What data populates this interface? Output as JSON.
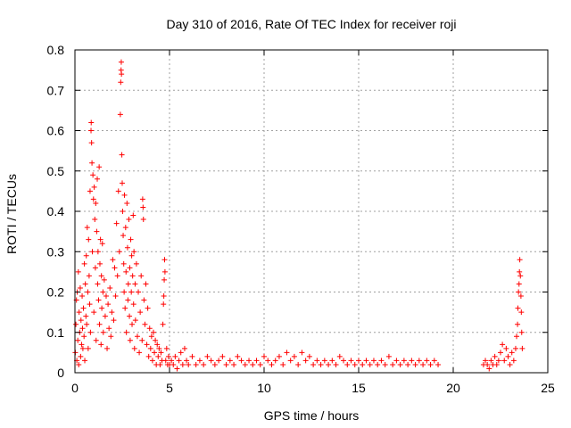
{
  "chart_data": {
    "type": "scatter",
    "title": "Day 310 of 2016, Rate Of TEC Index for receiver roji",
    "xlabel": "GPS time / hours",
    "ylabel": "ROTI / TECUs",
    "xlim": [
      0,
      25
    ],
    "ylim": [
      0,
      0.8
    ],
    "xticks": [
      0,
      5,
      10,
      15,
      20,
      25
    ],
    "xtick_labels": [
      "0",
      "5",
      "10",
      "15",
      "20",
      "25"
    ],
    "yticks": [
      0,
      0.1,
      0.2,
      0.3,
      0.4,
      0.5,
      0.6,
      0.7,
      0.8
    ],
    "ytick_labels": [
      "0",
      "0.1",
      "0.2",
      "0.3",
      "0.4",
      "0.5",
      "0.6",
      "0.7",
      "0.8"
    ],
    "grid": true,
    "marker": "plus",
    "color": "#ff0000",
    "series": [
      {
        "name": "ROTI",
        "points": [
          [
            0.02,
            0.05
          ],
          [
            0.05,
            0.12
          ],
          [
            0.08,
            0.18
          ],
          [
            0.1,
            0.03
          ],
          [
            0.12,
            0.2
          ],
          [
            0.15,
            0.08
          ],
          [
            0.18,
            0.25
          ],
          [
            0.2,
            0.02
          ],
          [
            0.22,
            0.15
          ],
          [
            0.25,
            0.1
          ],
          [
            0.28,
            0.21
          ],
          [
            0.3,
            0.04
          ],
          [
            0.32,
            0.13
          ],
          [
            0.35,
            0.07
          ],
          [
            0.38,
            0.19
          ],
          [
            0.4,
            0.11
          ],
          [
            0.42,
            0.06
          ],
          [
            0.45,
            0.16
          ],
          [
            0.48,
            0.09
          ],
          [
            0.5,
            0.27
          ],
          [
            0.52,
            0.03
          ],
          [
            0.55,
            0.22
          ],
          [
            0.58,
            0.14
          ],
          [
            0.6,
            0.29
          ],
          [
            0.62,
            0.12
          ],
          [
            0.65,
            0.36
          ],
          [
            0.68,
            0.2
          ],
          [
            0.7,
            0.06
          ],
          [
            0.72,
            0.33
          ],
          [
            0.75,
            0.24
          ],
          [
            0.78,
            0.17
          ],
          [
            0.8,
            0.45
          ],
          [
            0.82,
            0.1
          ],
          [
            0.85,
            0.6
          ],
          [
            0.86,
            0.62
          ],
          [
            0.88,
            0.57
          ],
          [
            0.9,
            0.52
          ],
          [
            0.92,
            0.3
          ],
          [
            0.95,
            0.49
          ],
          [
            0.98,
            0.43
          ],
          [
            1.0,
            0.15
          ],
          [
            1.02,
            0.46
          ],
          [
            1.05,
            0.38
          ],
          [
            1.08,
            0.26
          ],
          [
            1.1,
            0.42
          ],
          [
            1.12,
            0.08
          ],
          [
            1.15,
            0.35
          ],
          [
            1.18,
            0.48
          ],
          [
            1.2,
            0.22
          ],
          [
            1.22,
            0.3
          ],
          [
            1.25,
            0.18
          ],
          [
            1.28,
            0.51
          ],
          [
            1.3,
            0.12
          ],
          [
            1.32,
            0.27
          ],
          [
            1.35,
            0.33
          ],
          [
            1.38,
            0.07
          ],
          [
            1.4,
            0.24
          ],
          [
            1.42,
            0.16
          ],
          [
            1.45,
            0.32
          ],
          [
            1.48,
            0.2
          ],
          [
            1.5,
            0.1
          ],
          [
            1.55,
            0.23
          ],
          [
            1.6,
            0.14
          ],
          [
            1.65,
            0.19
          ],
          [
            1.7,
            0.06
          ],
          [
            1.75,
            0.17
          ],
          [
            1.8,
            0.11
          ],
          [
            1.85,
            0.21
          ],
          [
            1.9,
            0.09
          ],
          [
            1.95,
            0.15
          ],
          [
            2.0,
            0.28
          ],
          [
            2.05,
            0.13
          ],
          [
            2.1,
            0.26
          ],
          [
            2.15,
            0.19
          ],
          [
            2.2,
            0.37
          ],
          [
            2.25,
            0.24
          ],
          [
            2.3,
            0.45
          ],
          [
            2.35,
            0.3
          ],
          [
            2.4,
            0.64
          ],
          [
            2.42,
            0.72
          ],
          [
            2.44,
            0.75
          ],
          [
            2.45,
            0.77
          ],
          [
            2.46,
            0.74
          ],
          [
            2.48,
            0.54
          ],
          [
            2.5,
            0.47
          ],
          [
            2.52,
            0.4
          ],
          [
            2.55,
            0.34
          ],
          [
            2.58,
            0.27
          ],
          [
            2.6,
            0.2
          ],
          [
            2.62,
            0.44
          ],
          [
            2.65,
            0.16
          ],
          [
            2.68,
            0.36
          ],
          [
            2.7,
            0.25
          ],
          [
            2.72,
            0.1
          ],
          [
            2.75,
            0.42
          ],
          [
            2.78,
            0.31
          ],
          [
            2.8,
            0.18
          ],
          [
            2.82,
            0.22
          ],
          [
            2.85,
            0.38
          ],
          [
            2.88,
            0.14
          ],
          [
            2.9,
            0.26
          ],
          [
            2.92,
            0.08
          ],
          [
            2.95,
            0.33
          ],
          [
            2.98,
            0.2
          ],
          [
            3.0,
            0.29
          ],
          [
            3.02,
            0.12
          ],
          [
            3.05,
            0.24
          ],
          [
            3.08,
            0.39
          ],
          [
            3.1,
            0.17
          ],
          [
            3.12,
            0.3
          ],
          [
            3.15,
            0.06
          ],
          [
            3.18,
            0.22
          ],
          [
            3.2,
            0.13
          ],
          [
            3.25,
            0.27
          ],
          [
            3.3,
            0.09
          ],
          [
            3.35,
            0.2
          ],
          [
            3.4,
            0.05
          ],
          [
            3.45,
            0.15
          ],
          [
            3.5,
            0.24
          ],
          [
            3.55,
            0.08
          ],
          [
            3.58,
            0.43
          ],
          [
            3.6,
            0.41
          ],
          [
            3.62,
            0.38
          ],
          [
            3.65,
            0.18
          ],
          [
            3.7,
            0.12
          ],
          [
            3.75,
            0.22
          ],
          [
            3.8,
            0.07
          ],
          [
            3.85,
            0.16
          ],
          [
            3.9,
            0.04
          ],
          [
            3.95,
            0.11
          ],
          [
            4.0,
            0.06
          ],
          [
            4.05,
            0.09
          ],
          [
            4.1,
            0.03
          ],
          [
            4.15,
            0.1
          ],
          [
            4.2,
            0.05
          ],
          [
            4.25,
            0.08
          ],
          [
            4.3,
            0.02
          ],
          [
            4.35,
            0.07
          ],
          [
            4.4,
            0.04
          ],
          [
            4.45,
            0.06
          ],
          [
            4.5,
            0.02
          ],
          [
            4.55,
            0.05
          ],
          [
            4.6,
            0.03
          ],
          [
            4.65,
            0.12
          ],
          [
            4.68,
            0.17
          ],
          [
            4.7,
            0.19
          ],
          [
            4.72,
            0.23
          ],
          [
            4.74,
            0.28
          ],
          [
            4.76,
            0.25
          ],
          [
            4.8,
            0.03
          ],
          [
            4.85,
            0.06
          ],
          [
            4.9,
            0.02
          ],
          [
            4.95,
            0.04
          ],
          [
            5.0,
            0.02
          ],
          [
            5.1,
            0.03
          ],
          [
            5.2,
            0.02
          ],
          [
            5.3,
            0.04
          ],
          [
            5.4,
            0.01
          ],
          [
            5.5,
            0.03
          ],
          [
            5.6,
            0.05
          ],
          [
            5.7,
            0.02
          ],
          [
            5.8,
            0.06
          ],
          [
            5.9,
            0.03
          ],
          [
            6.0,
            0.02
          ],
          [
            6.2,
            0.04
          ],
          [
            6.4,
            0.02
          ],
          [
            6.6,
            0.03
          ],
          [
            6.8,
            0.02
          ],
          [
            7.0,
            0.04
          ],
          [
            7.2,
            0.03
          ],
          [
            7.4,
            0.02
          ],
          [
            7.6,
            0.03
          ],
          [
            7.8,
            0.04
          ],
          [
            8.0,
            0.02
          ],
          [
            8.2,
            0.03
          ],
          [
            8.4,
            0.02
          ],
          [
            8.6,
            0.04
          ],
          [
            8.8,
            0.03
          ],
          [
            9.0,
            0.02
          ],
          [
            9.2,
            0.03
          ],
          [
            9.4,
            0.02
          ],
          [
            9.6,
            0.03
          ],
          [
            9.8,
            0.02
          ],
          [
            10.0,
            0.04
          ],
          [
            10.2,
            0.03
          ],
          [
            10.4,
            0.02
          ],
          [
            10.6,
            0.03
          ],
          [
            10.8,
            0.04
          ],
          [
            11.0,
            0.02
          ],
          [
            11.2,
            0.05
          ],
          [
            11.4,
            0.03
          ],
          [
            11.6,
            0.04
          ],
          [
            11.8,
            0.02
          ],
          [
            12.0,
            0.05
          ],
          [
            12.2,
            0.03
          ],
          [
            12.4,
            0.04
          ],
          [
            12.6,
            0.02
          ],
          [
            12.8,
            0.03
          ],
          [
            13.0,
            0.02
          ],
          [
            13.2,
            0.03
          ],
          [
            13.4,
            0.02
          ],
          [
            13.6,
            0.03
          ],
          [
            13.8,
            0.02
          ],
          [
            14.0,
            0.04
          ],
          [
            14.2,
            0.03
          ],
          [
            14.4,
            0.02
          ],
          [
            14.6,
            0.03
          ],
          [
            14.8,
            0.02
          ],
          [
            15.0,
            0.03
          ],
          [
            15.2,
            0.02
          ],
          [
            15.4,
            0.03
          ],
          [
            15.6,
            0.02
          ],
          [
            15.8,
            0.03
          ],
          [
            16.0,
            0.02
          ],
          [
            16.2,
            0.03
          ],
          [
            16.4,
            0.02
          ],
          [
            16.6,
            0.04
          ],
          [
            16.8,
            0.02
          ],
          [
            17.0,
            0.03
          ],
          [
            17.2,
            0.02
          ],
          [
            17.4,
            0.03
          ],
          [
            17.6,
            0.02
          ],
          [
            17.8,
            0.03
          ],
          [
            18.0,
            0.02
          ],
          [
            18.2,
            0.03
          ],
          [
            18.4,
            0.02
          ],
          [
            18.6,
            0.03
          ],
          [
            18.8,
            0.02
          ],
          [
            19.0,
            0.03
          ],
          [
            19.2,
            0.02
          ],
          [
            21.6,
            0.02
          ],
          [
            21.7,
            0.03
          ],
          [
            21.8,
            0.02
          ],
          [
            21.9,
            0.01
          ],
          [
            22.0,
            0.03
          ],
          [
            22.1,
            0.02
          ],
          [
            22.2,
            0.04
          ],
          [
            22.3,
            0.02
          ],
          [
            22.4,
            0.03
          ],
          [
            22.5,
            0.05
          ],
          [
            22.6,
            0.07
          ],
          [
            22.7,
            0.03
          ],
          [
            22.8,
            0.06
          ],
          [
            22.9,
            0.04
          ],
          [
            23.0,
            0.02
          ],
          [
            23.1,
            0.05
          ],
          [
            23.2,
            0.03
          ],
          [
            23.3,
            0.06
          ],
          [
            23.35,
            0.09
          ],
          [
            23.4,
            0.12
          ],
          [
            23.42,
            0.16
          ],
          [
            23.45,
            0.2
          ],
          [
            23.48,
            0.22
          ],
          [
            23.5,
            0.25
          ],
          [
            23.52,
            0.28
          ],
          [
            23.55,
            0.24
          ],
          [
            23.58,
            0.19
          ],
          [
            23.6,
            0.15
          ],
          [
            23.62,
            0.1
          ],
          [
            23.65,
            0.06
          ]
        ]
      }
    ]
  }
}
